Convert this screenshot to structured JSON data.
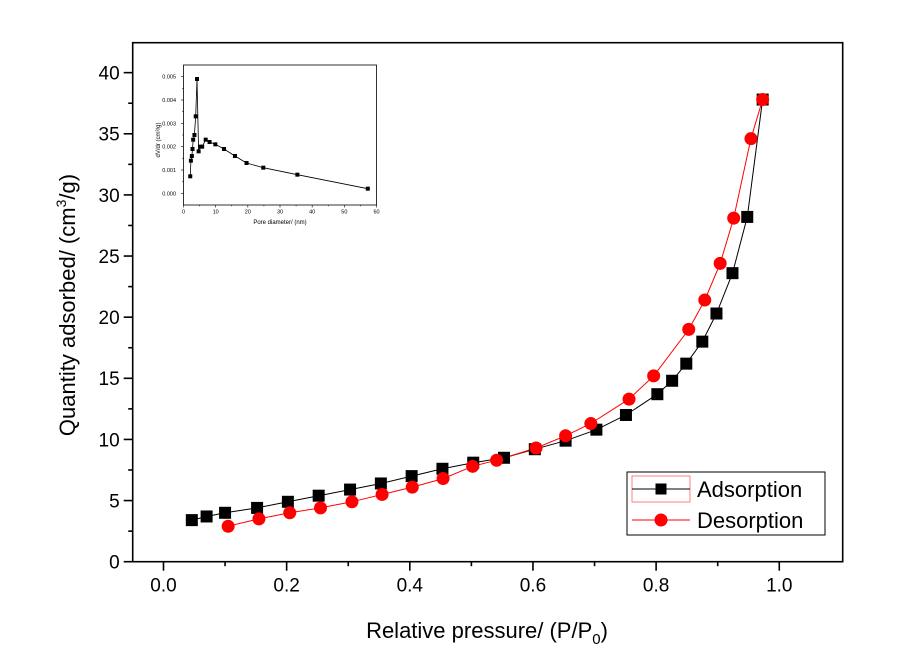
{
  "chart_data": [
    {
      "type": "line",
      "role": "main",
      "title": "",
      "xlabel": "Relative pressure/ (P/P",
      "xlabel_sub": "0",
      "xlabel_end": ")",
      "ylabel": "Quantity adsorbed/ (cm",
      "ylabel_sup": "3",
      "ylabel_end": "/g)",
      "xlim": [
        -0.05,
        1.103
      ],
      "ylim": [
        0,
        42.45
      ],
      "xticks": [
        0.0,
        0.2,
        0.4,
        0.6,
        0.8,
        1.0
      ],
      "xtick_labels": [
        "0.0",
        "0.2",
        "0.4",
        "0.6",
        "0.8",
        "1.0"
      ],
      "yticks": [
        0,
        5,
        10,
        15,
        20,
        25,
        30,
        35,
        40
      ],
      "ytick_labels": [
        "0",
        "5",
        "10",
        "15",
        "20",
        "25",
        "30",
        "35",
        "40"
      ],
      "grid": false,
      "legend_position": "bottom-right",
      "series": [
        {
          "name": "Adsorption",
          "marker": "square",
          "color": "#000000",
          "x": [
            0.046,
            0.07,
            0.1,
            0.152,
            0.202,
            0.252,
            0.303,
            0.353,
            0.403,
            0.453,
            0.503,
            0.553,
            0.603,
            0.653,
            0.703,
            0.751,
            0.802,
            0.826,
            0.849,
            0.875,
            0.898,
            0.924,
            0.948,
            0.973
          ],
          "y": [
            3.4,
            3.7,
            4.0,
            4.4,
            4.9,
            5.4,
            5.9,
            6.4,
            7.0,
            7.6,
            8.1,
            8.5,
            9.2,
            9.9,
            10.8,
            12.0,
            13.7,
            14.8,
            16.2,
            18.0,
            20.3,
            23.6,
            28.2,
            37.8
          ]
        },
        {
          "name": "Desorption",
          "marker": "circle",
          "color": "#ff0000",
          "x": [
            0.105,
            0.155,
            0.205,
            0.255,
            0.306,
            0.355,
            0.404,
            0.454,
            0.502,
            0.541,
            0.605,
            0.653,
            0.694,
            0.756,
            0.796,
            0.853,
            0.879,
            0.904,
            0.926,
            0.954,
            0.973
          ],
          "y": [
            2.9,
            3.5,
            4.0,
            4.4,
            4.9,
            5.5,
            6.1,
            6.8,
            7.8,
            8.3,
            9.3,
            10.3,
            11.3,
            13.3,
            15.2,
            19.0,
            21.4,
            24.4,
            28.1,
            34.6,
            37.8
          ]
        }
      ]
    },
    {
      "type": "line",
      "role": "inset",
      "title": "",
      "xlabel": "Pore diameter/ (nm)",
      "ylabel": "dV/dr (cm³/g)",
      "xlim": [
        0,
        60
      ],
      "ylim": [
        -0.0005,
        0.0055
      ],
      "xticks": [
        0,
        10,
        20,
        30,
        40,
        50,
        60
      ],
      "xtick_labels": [
        "0",
        "10",
        "20",
        "30",
        "40",
        "50",
        "60"
      ],
      "yticks": [
        0.0,
        0.001,
        0.002,
        0.003,
        0.004,
        0.005
      ],
      "ytick_labels": [
        "0.000",
        "0.001",
        "0.002",
        "0.003",
        "0.004",
        "0.005"
      ],
      "grid": false,
      "series": [
        {
          "name": "Pore size distribution",
          "marker": "square",
          "color": "#000000",
          "x": [
            2.1,
            2.3,
            2.6,
            2.8,
            3.0,
            3.4,
            3.8,
            4.2,
            4.7,
            5.2,
            5.8,
            6.9,
            8.1,
            9.9,
            12.6,
            16.0,
            19.6,
            24.8,
            35.4,
            57.3
          ],
          "y": [
            0.00073,
            0.0014,
            0.0016,
            0.0019,
            0.0023,
            0.0025,
            0.0033,
            0.0049,
            0.0018,
            0.002,
            0.002,
            0.0023,
            0.0022,
            0.0021,
            0.0019,
            0.0016,
            0.0013,
            0.0011,
            0.0008,
            0.0002
          ]
        }
      ]
    }
  ]
}
